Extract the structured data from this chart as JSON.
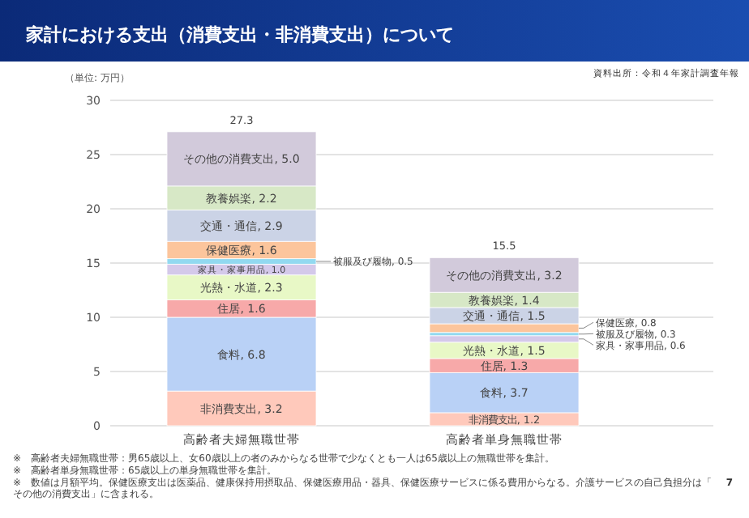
{
  "chart_data": {
    "type": "bar",
    "stacked": true,
    "title": "家計における支出（消費支出・非消費支出）について",
    "ylabel": "（単位: 万円）",
    "categories": [
      "高齢者夫婦無職世帯",
      "高齢者単身無職世帯"
    ],
    "series": [
      {
        "color": "#ffc9bb",
        "values": [
          3.2,
          1.2
        ],
        "value_labels": [
          "非消費支出, 3.2",
          "非消費支出, 1.2"
        ]
      },
      {
        "color": "#b9d1f6",
        "values": [
          6.8,
          3.7
        ],
        "value_labels": [
          "食料, 6.8",
          "食料, 3.7"
        ]
      },
      {
        "color": "#f7a9a9",
        "values": [
          1.6,
          1.3
        ],
        "value_labels": [
          "住居, 1.6",
          "住居, 1.3"
        ]
      },
      {
        "color": "#e8f8c6",
        "values": [
          2.3,
          1.5
        ],
        "value_labels": [
          "光熱・水道, 2.3",
          "光熱・水道, 1.5"
        ]
      },
      {
        "color": "#d4c9ea",
        "values": [
          1.0,
          0.6
        ],
        "value_labels": [
          "家具・家事用品, 1.0",
          "家具・家事用品, 0.6"
        ]
      },
      {
        "color": "#92d9f0",
        "values": [
          0.5,
          0.3
        ],
        "value_labels": [
          "被服及び履物, 0.5",
          "被服及び履物, 0.3"
        ]
      },
      {
        "color": "#fcc59c",
        "values": [
          1.6,
          0.8
        ],
        "value_labels": [
          "保健医療, 1.6",
          "保健医療, 0.8"
        ]
      },
      {
        "color": "#cbd3e6",
        "values": [
          2.9,
          1.5
        ],
        "value_labels": [
          "交通・通信, 2.9",
          "交通・通信, 1.5"
        ]
      },
      {
        "color": "#d7e8c6",
        "values": [
          2.2,
          1.4
        ],
        "value_labels": [
          "教養娯楽, 2.2",
          "教養娯楽, 1.4"
        ]
      },
      {
        "color": "#d2cadb",
        "values": [
          5.0,
          3.2
        ],
        "value_labels": [
          "その他の消費支出, 5.0",
          "その他の消費支出, 3.2"
        ]
      }
    ],
    "totals": [
      "27.3",
      "15.5"
    ],
    "ylim": [
      0,
      30
    ],
    "yticks": [
      0,
      5,
      10,
      15,
      20,
      25,
      30
    ],
    "grid": "y",
    "annotations": [
      "資料出所：令和４年家計調査年報",
      "※　高齢者夫婦無職世帯：男65歳以上、女60歳以上の者のみからなる世帯で少なくとも一人は65歳以上の無職世帯を集計。",
      "※　高齢者単身無職世帯：65歳以上の単身無職世帯を集計。",
      "※　数値は月額平均。保健医療支出は医薬品、健康保持用摂取品、保健医療用品・器具、保健医療サービスに係る費用からなる。介護サービスの自己負担分は「その他の消費支出」に含まれる。",
      "7"
    ]
  }
}
